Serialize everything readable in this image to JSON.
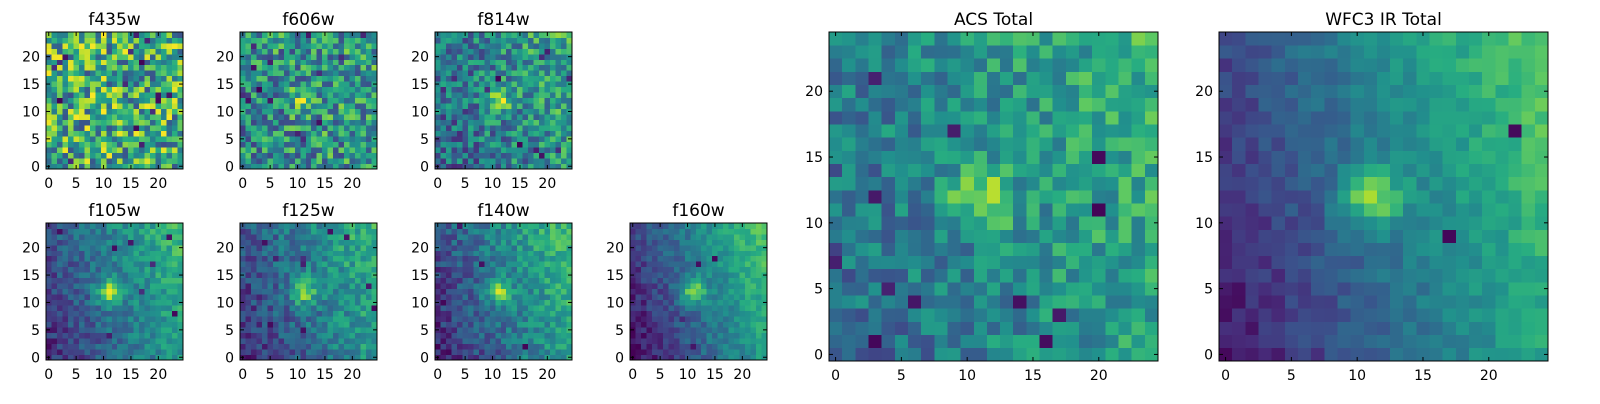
{
  "chart_data": {
    "type": "heatmap",
    "colormap": "viridis",
    "image_size": [
      25,
      25
    ],
    "axis_origin": "lower",
    "grid": false,
    "legend": false,
    "panels": [
      {
        "id": "f435w",
        "title": "f435w",
        "xticks": [
          "0",
          "5",
          "10",
          "15",
          "20"
        ],
        "yticks": [
          "0",
          "5",
          "10",
          "15",
          "20"
        ],
        "xlim": [
          0,
          25
        ],
        "ylim": [
          0,
          25
        ],
        "peak": [
          11,
          12
        ],
        "peak_amp": 0.05,
        "gradient": 0.0,
        "noise": 0.75,
        "base": 0.62,
        "seed": 11,
        "dark_pixels": 16
      },
      {
        "id": "f606w",
        "title": "f606w",
        "xticks": [
          "0",
          "5",
          "10",
          "15",
          "20"
        ],
        "yticks": [
          "0",
          "5",
          "10",
          "15",
          "20"
        ],
        "xlim": [
          0,
          25
        ],
        "ylim": [
          0,
          25
        ],
        "peak": [
          11,
          12
        ],
        "peak_amp": 0.3,
        "gradient": 0.08,
        "noise": 0.6,
        "base": 0.5,
        "seed": 23,
        "dark_pixels": 14
      },
      {
        "id": "f814w",
        "title": "f814w",
        "xticks": [
          "0",
          "5",
          "10",
          "15",
          "20"
        ],
        "yticks": [
          "0",
          "5",
          "10",
          "15",
          "20"
        ],
        "xlim": [
          0,
          25
        ],
        "ylim": [
          0,
          25
        ],
        "peak": [
          11,
          12
        ],
        "peak_amp": 0.4,
        "gradient": 0.3,
        "noise": 0.5,
        "base": 0.42,
        "seed": 37,
        "dark_pixels": 10
      },
      {
        "id": "f105w",
        "title": "f105w",
        "xticks": [
          "0",
          "5",
          "10",
          "15",
          "20"
        ],
        "yticks": [
          "0",
          "5",
          "10",
          "15",
          "20"
        ],
        "xlim": [
          0,
          25
        ],
        "ylim": [
          0,
          25
        ],
        "peak": [
          11,
          12
        ],
        "peak_amp": 0.5,
        "gradient": 0.55,
        "noise": 0.25,
        "base": 0.32,
        "seed": 41,
        "dark_pixels": 8
      },
      {
        "id": "f125w",
        "title": "f125w",
        "xticks": [
          "0",
          "5",
          "10",
          "15",
          "20"
        ],
        "yticks": [
          "0",
          "5",
          "10",
          "15",
          "20"
        ],
        "xlim": [
          0,
          25
        ],
        "ylim": [
          0,
          25
        ],
        "peak": [
          11,
          12
        ],
        "peak_amp": 0.45,
        "gradient": 0.55,
        "noise": 0.3,
        "base": 0.32,
        "seed": 53,
        "dark_pixels": 10
      },
      {
        "id": "f140w",
        "title": "f140w",
        "xticks": [
          "0",
          "5",
          "10",
          "15",
          "20"
        ],
        "yticks": [
          "0",
          "5",
          "10",
          "15",
          "20"
        ],
        "xlim": [
          0,
          25
        ],
        "ylim": [
          0,
          25
        ],
        "peak": [
          11,
          12
        ],
        "peak_amp": 0.45,
        "gradient": 0.6,
        "noise": 0.28,
        "base": 0.32,
        "seed": 67,
        "dark_pixels": 6
      },
      {
        "id": "f160w",
        "title": "f160w",
        "xticks": [
          "0",
          "5",
          "10",
          "15",
          "20"
        ],
        "yticks": [
          "0",
          "5",
          "10",
          "15",
          "20"
        ],
        "xlim": [
          0,
          25
        ],
        "ylim": [
          0,
          25
        ],
        "peak": [
          11,
          12
        ],
        "peak_amp": 0.45,
        "gradient": 0.7,
        "noise": 0.2,
        "base": 0.28,
        "seed": 79,
        "dark_pixels": 4
      },
      {
        "id": "acs-total",
        "title": "ACS Total",
        "xticks": [
          "0",
          "5",
          "10",
          "15",
          "20"
        ],
        "yticks": [
          "0",
          "5",
          "10",
          "15",
          "20"
        ],
        "xlim": [
          0,
          25
        ],
        "ylim": [
          0,
          25
        ],
        "peak": [
          11,
          12
        ],
        "peak_amp": 0.4,
        "gradient": 0.3,
        "noise": 0.35,
        "base": 0.45,
        "seed": 91,
        "dark_pixels": 12
      },
      {
        "id": "wfc3-ir-total",
        "title": "WFC3 IR Total",
        "xticks": [
          "0",
          "5",
          "10",
          "15",
          "20"
        ],
        "yticks": [
          "0",
          "5",
          "10",
          "15",
          "20"
        ],
        "xlim": [
          0,
          25
        ],
        "ylim": [
          0,
          25
        ],
        "peak": [
          11,
          12
        ],
        "peak_amp": 0.45,
        "gradient": 0.7,
        "noise": 0.15,
        "base": 0.3,
        "seed": 103,
        "dark_pixels": 3
      }
    ]
  }
}
